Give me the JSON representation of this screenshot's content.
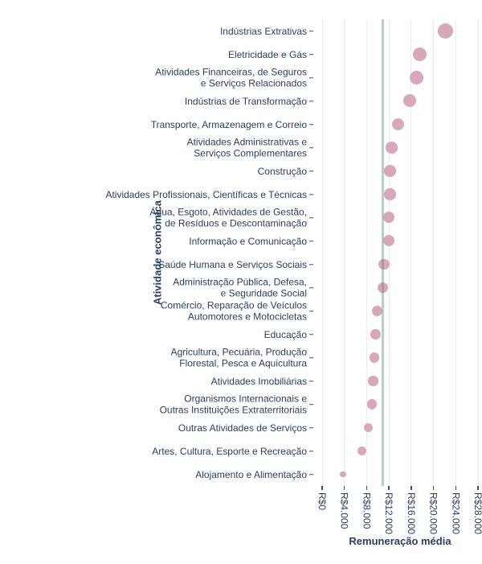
{
  "chart_data": {
    "type": "scatter",
    "subtype": "horizontal-dot-plot",
    "title": "",
    "xlabel": "Remuneração média",
    "ylabel": "Atividade econômica",
    "categories": [
      "Indústrias Extrativas",
      "Eletricidade e Gás",
      "Atividades Financeiras, de Seguros\ne Serviços Relacionados",
      "Indústrias de Transformação",
      "Transporte, Armazenagem e Correio",
      "Atividades Administrativas e\nServiços Complementares",
      "Construção",
      "Atividades Profissionais, Científicas e Técnicas",
      "Água, Esgoto, Atividades de Gestão,\nde Resíduos e Descontaminação",
      "Informação e Comunicação",
      "Saúde Humana e Serviços Sociais",
      "Administração Pública, Defesa,\ne Seguridade Social",
      "Comércio, Reparação de Veículos\nAutomotores e Motocicletas",
      "Educação",
      "Agricultura, Pecuária, Produção\nFlorestal, Pesca e Aquicultura",
      "Atividades Imobiliárias",
      "Organismos Internacionais e\nOutras Instituições Extraterritoriais",
      "Outras Atividades de Serviços",
      "Artes, Cultura, Esporte e Recreação",
      "Alojamento e Alimentação"
    ],
    "values": [
      22100,
      17500,
      17000,
      15700,
      13700,
      12500,
      12200,
      12200,
      12000,
      12000,
      11100,
      10850,
      9900,
      9600,
      9350,
      9150,
      9000,
      8300,
      7100,
      3800
    ],
    "x_ticks": [
      "R$0",
      "R$4.000",
      "R$8.000",
      "R$12.000",
      "R$16.000",
      "R$20.000",
      "R$24.000",
      "R$28.000"
    ],
    "x_tick_values": [
      0,
      4000,
      8000,
      12000,
      16000,
      20000,
      24000,
      28000
    ],
    "xlim": [
      0,
      28000
    ],
    "grid": "on",
    "legend": "none",
    "marker_size_encodes": "value",
    "reference_line": {
      "value": 10850,
      "orientation": "vertical"
    }
  },
  "colors": {
    "marker": "#d9a7bb",
    "reference_line": "#4aa373",
    "gridline": "#e9ebf4",
    "text": "#2a3f5f",
    "tick": "#3d5068"
  }
}
